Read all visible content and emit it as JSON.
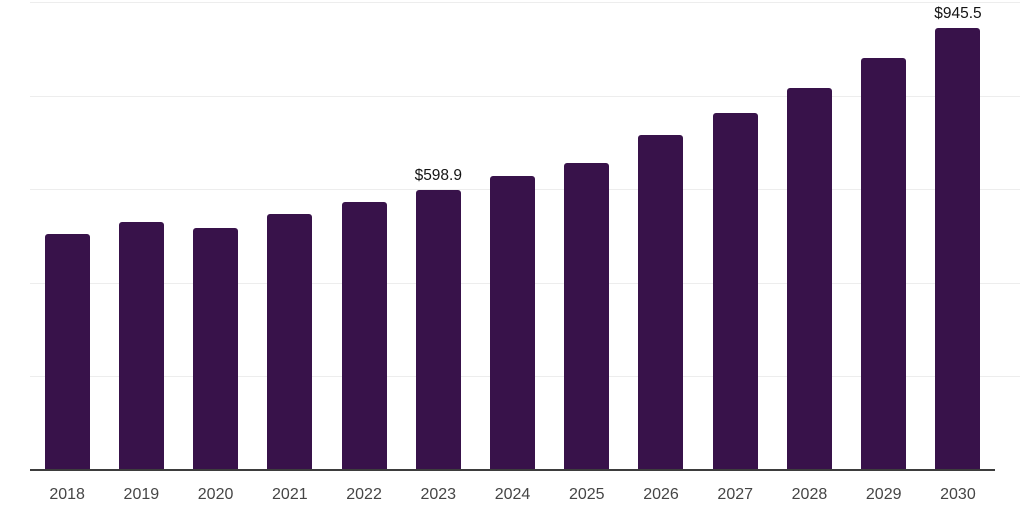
{
  "chart_data": {
    "type": "bar",
    "title": "",
    "xlabel": "",
    "ylabel": "",
    "categories": [
      "2018",
      "2019",
      "2020",
      "2021",
      "2022",
      "2023",
      "2024",
      "2025",
      "2026",
      "2027",
      "2028",
      "2029",
      "2030"
    ],
    "values": [
      505,
      529,
      518,
      546,
      573,
      598.9,
      629,
      655,
      715,
      762,
      816,
      880,
      945.5
    ],
    "data_labels": [
      null,
      null,
      null,
      null,
      null,
      "$598.9",
      null,
      null,
      null,
      null,
      null,
      null,
      "$945.5"
    ],
    "ylim": [
      0,
      1000
    ],
    "gridline_step": 200,
    "grid": true,
    "legend_position": "none",
    "colors": {
      "bar": "#38124a",
      "gridline": "#ededed",
      "axis_line": "#3d3d3d",
      "tick_label": "#454545",
      "data_label": "#141414",
      "background": "#ffffff"
    }
  }
}
